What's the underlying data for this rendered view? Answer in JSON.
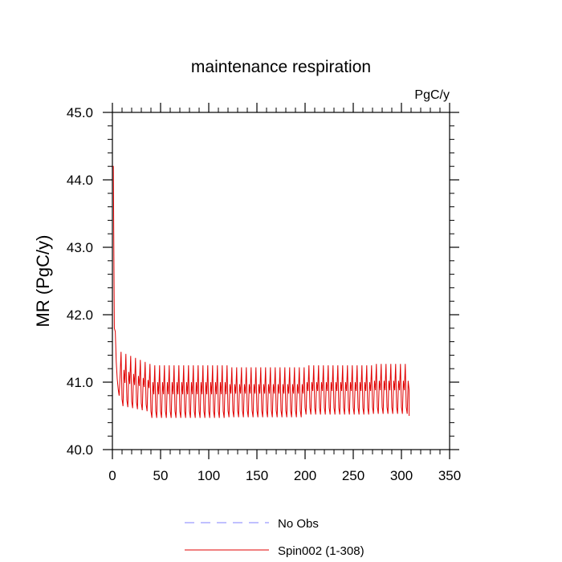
{
  "chart_data": {
    "type": "line",
    "title": "maintenance respiration",
    "units_label": "PgC/y",
    "xlabel": "",
    "ylabel": "MR  (PgC/y)",
    "xlim": [
      0,
      350
    ],
    "ylim": [
      40.0,
      45.0
    ],
    "xticks": [
      0,
      50,
      100,
      150,
      200,
      250,
      300,
      350
    ],
    "xtick_labels": [
      "0",
      "50",
      "100",
      "150",
      "200",
      "250",
      "300",
      "350"
    ],
    "yticks": [
      40.0,
      41.0,
      42.0,
      43.0,
      44.0,
      45.0
    ],
    "ytick_labels": [
      "40.0",
      "41.0",
      "42.0",
      "43.0",
      "44.0",
      "45.0"
    ],
    "series": [
      {
        "name": "No Obs",
        "style": "dashed",
        "color": "#8080ff",
        "x": [],
        "y": []
      },
      {
        "name": "Spin002 (1-308)",
        "style": "solid",
        "color": "#e00000",
        "x_start": 1,
        "x_end": 308,
        "cycle_period_years": 5,
        "envelope": {
          "initial": 44.2,
          "early_drop_to": 41.8,
          "peak_typical": 41.25,
          "trough_typical": 40.5
        }
      }
    ],
    "legend": {
      "placement": "bottom-center",
      "entries": [
        "No Obs",
        "Spin002 (1-308)"
      ]
    }
  }
}
